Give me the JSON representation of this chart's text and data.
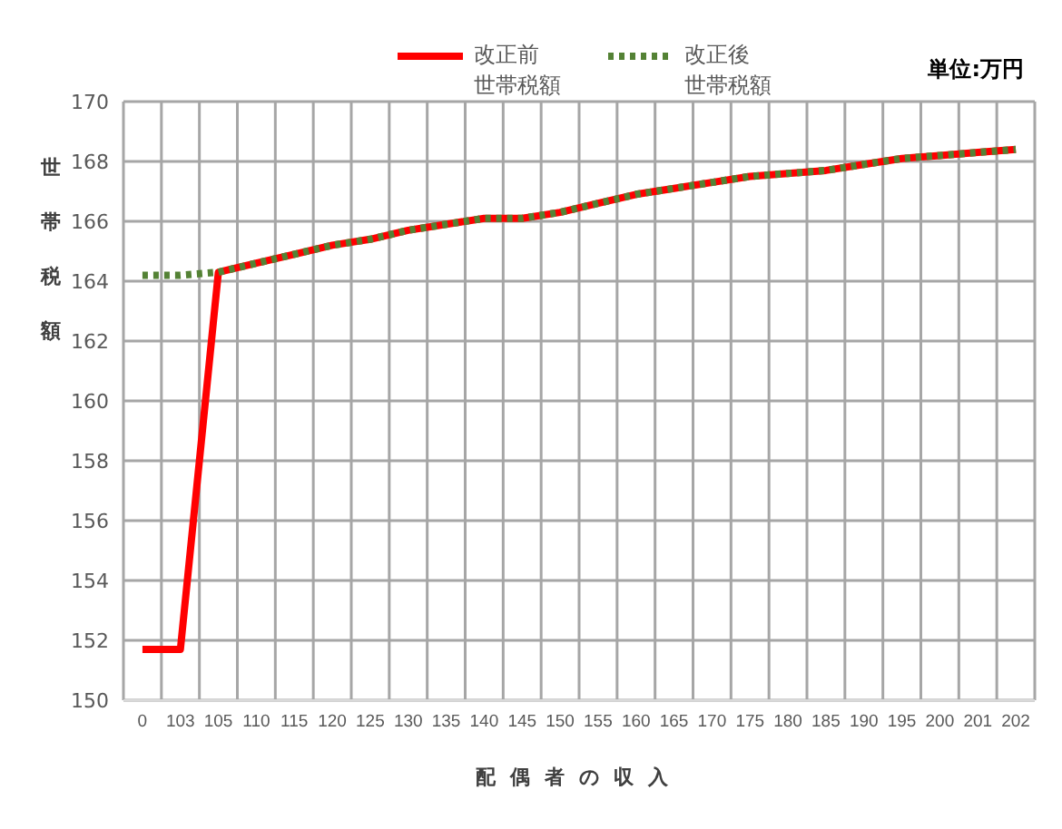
{
  "chart_data": {
    "type": "line",
    "annotations": [
      "単位:万円"
    ],
    "xlabel": "配偶者の収入",
    "ylabel": "世帯税額",
    "categories": [
      "0",
      "103",
      "105",
      "110",
      "115",
      "120",
      "125",
      "130",
      "135",
      "140",
      "145",
      "150",
      "155",
      "160",
      "165",
      "170",
      "175",
      "180",
      "185",
      "190",
      "195",
      "200",
      "201",
      "202"
    ],
    "series": [
      {
        "name": "改正前世帯税額",
        "color": "#ff0000",
        "line_style": "solid",
        "values": [
          151.7,
          151.7,
          164.3,
          164.6,
          164.9,
          165.2,
          165.4,
          165.7,
          165.9,
          166.1,
          166.1,
          166.3,
          166.6,
          166.9,
          167.1,
          167.3,
          167.5,
          167.6,
          167.7,
          167.9,
          168.1,
          168.2,
          168.3,
          168.4
        ]
      },
      {
        "name": "改正後世帯税額",
        "color": "#548235",
        "line_style": "dotted",
        "values": [
          164.2,
          164.2,
          164.3,
          164.6,
          164.9,
          165.2,
          165.4,
          165.7,
          165.9,
          166.1,
          166.1,
          166.3,
          166.6,
          166.9,
          167.1,
          167.3,
          167.5,
          167.6,
          167.7,
          167.9,
          168.1,
          168.2,
          168.3,
          168.4
        ]
      }
    ],
    "ylim": [
      150,
      170
    ],
    "yticks": [
      150,
      152,
      154,
      156,
      158,
      160,
      162,
      164,
      166,
      168,
      170
    ],
    "grid": true,
    "legend": "top",
    "marker": "none"
  }
}
